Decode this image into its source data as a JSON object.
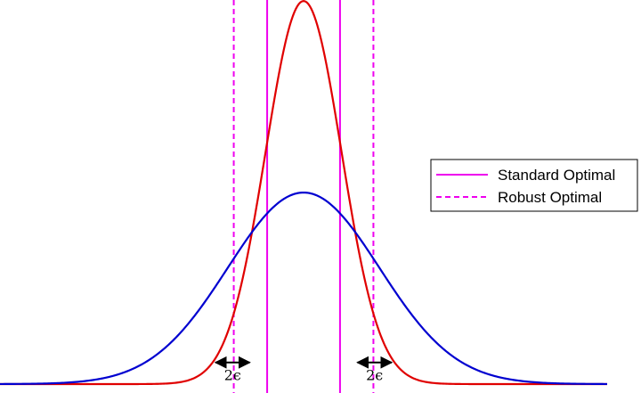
{
  "chart_data": {
    "type": "line",
    "title": "",
    "xlabel": "",
    "ylabel": "",
    "xlim": [
      -4,
      4
    ],
    "ylim": [
      0,
      0.8
    ],
    "grid": false,
    "legend_placement": "right",
    "curves": [
      {
        "kind": "gaussian",
        "mean": 0,
        "std": 0.5,
        "color": "#e00000"
      },
      {
        "kind": "gaussian",
        "mean": 0,
        "std": 1.0,
        "color": "#0000d0"
      }
    ],
    "series": [
      {
        "name": "Standard Optimal",
        "type": "vline",
        "x": [
          -0.48,
          0.48
        ],
        "color": "#ee00ee",
        "style": "solid"
      },
      {
        "name": "Robust Optimal",
        "type": "vline",
        "x": [
          -0.92,
          0.92
        ],
        "color": "#ee00ee",
        "style": "dashed"
      }
    ],
    "annotations": [
      {
        "text": "2ϵ",
        "x_from": -1.16,
        "x_to": -0.71,
        "y": 0.11
      },
      {
        "text": "2ϵ",
        "x_from": 0.71,
        "x_to": 1.16,
        "y": 0.11
      }
    ]
  }
}
